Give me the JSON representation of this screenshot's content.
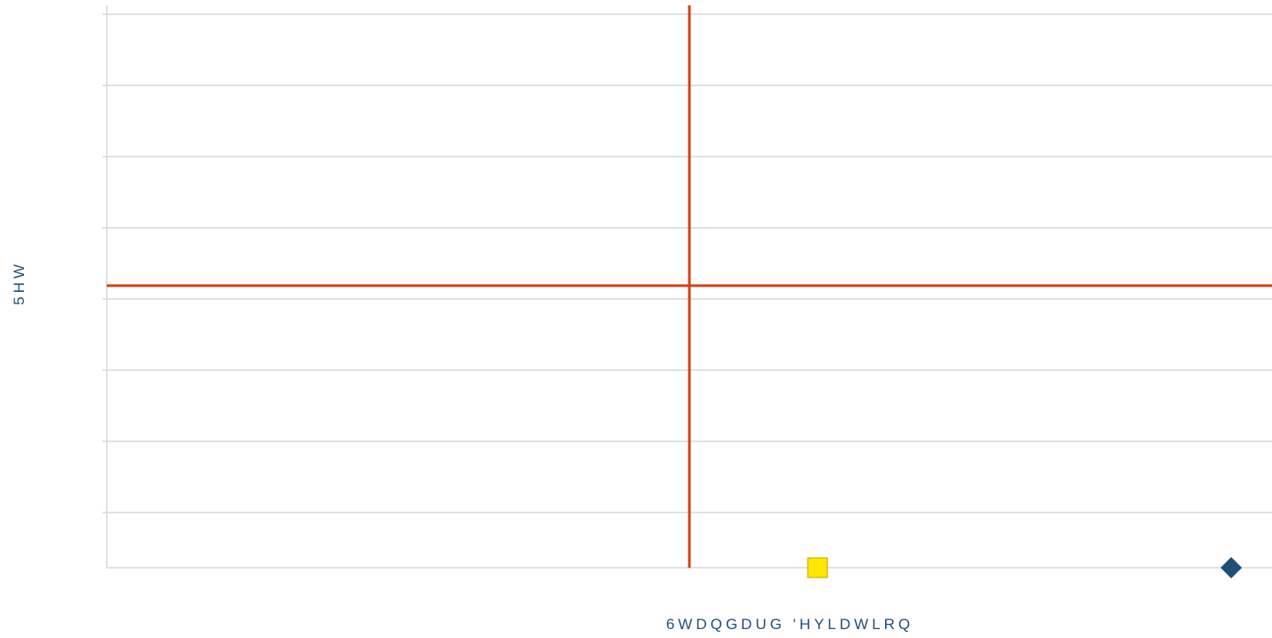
{
  "chart_data": {
    "type": "scatter",
    "xlabel": "6WDQGDUG 'HYLDWLRQ",
    "ylabel": "5HW",
    "grid": true,
    "colors": {
      "grid": "#d9d9d9",
      "reference_lines": "#d24312",
      "label_text": "#1f4e79"
    },
    "reference_lines": {
      "vertical": 0.5,
      "horizontal": 0.6
    },
    "series": [
      {
        "marker": "square",
        "color": "#ffe600",
        "x": [
          0.61
        ],
        "y": [
          0.0
        ]
      },
      {
        "marker": "diamond",
        "color": "#1f4e79",
        "x": [
          0.965
        ],
        "y": [
          0.0
        ]
      }
    ],
    "xlim": [
      0,
      1
    ],
    "ylim": [
      0,
      1
    ]
  }
}
